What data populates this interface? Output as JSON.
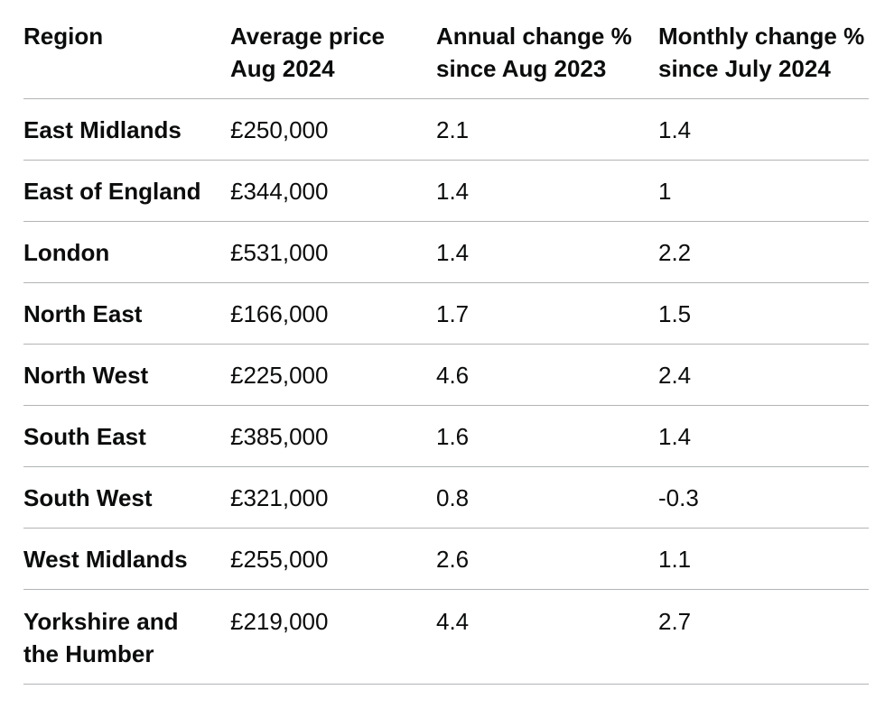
{
  "table": {
    "headers": [
      "Region",
      "Average price\nAug 2024",
      "Annual change %\nsince Aug 2023",
      "Monthly change %\nsince July  2024"
    ],
    "rows": [
      [
        "East Midlands",
        "£250,000",
        "2.1",
        "1.4"
      ],
      [
        "East of England",
        "£344,000",
        "1.4",
        "1"
      ],
      [
        "London",
        "£531,000",
        "1.4",
        "2.2"
      ],
      [
        "North East",
        "£166,000",
        "1.7",
        "1.5"
      ],
      [
        "North West",
        "£225,000",
        "4.6",
        "2.4"
      ],
      [
        "South East",
        "£385,000",
        "1.6",
        "1.4"
      ],
      [
        "South West",
        "£321,000",
        "0.8",
        "-0.3"
      ],
      [
        "West Midlands",
        "£255,000",
        "2.6",
        "1.1"
      ],
      [
        "Yorkshire and\nthe Humber",
        "£219,000",
        "4.4",
        "2.7"
      ]
    ]
  }
}
